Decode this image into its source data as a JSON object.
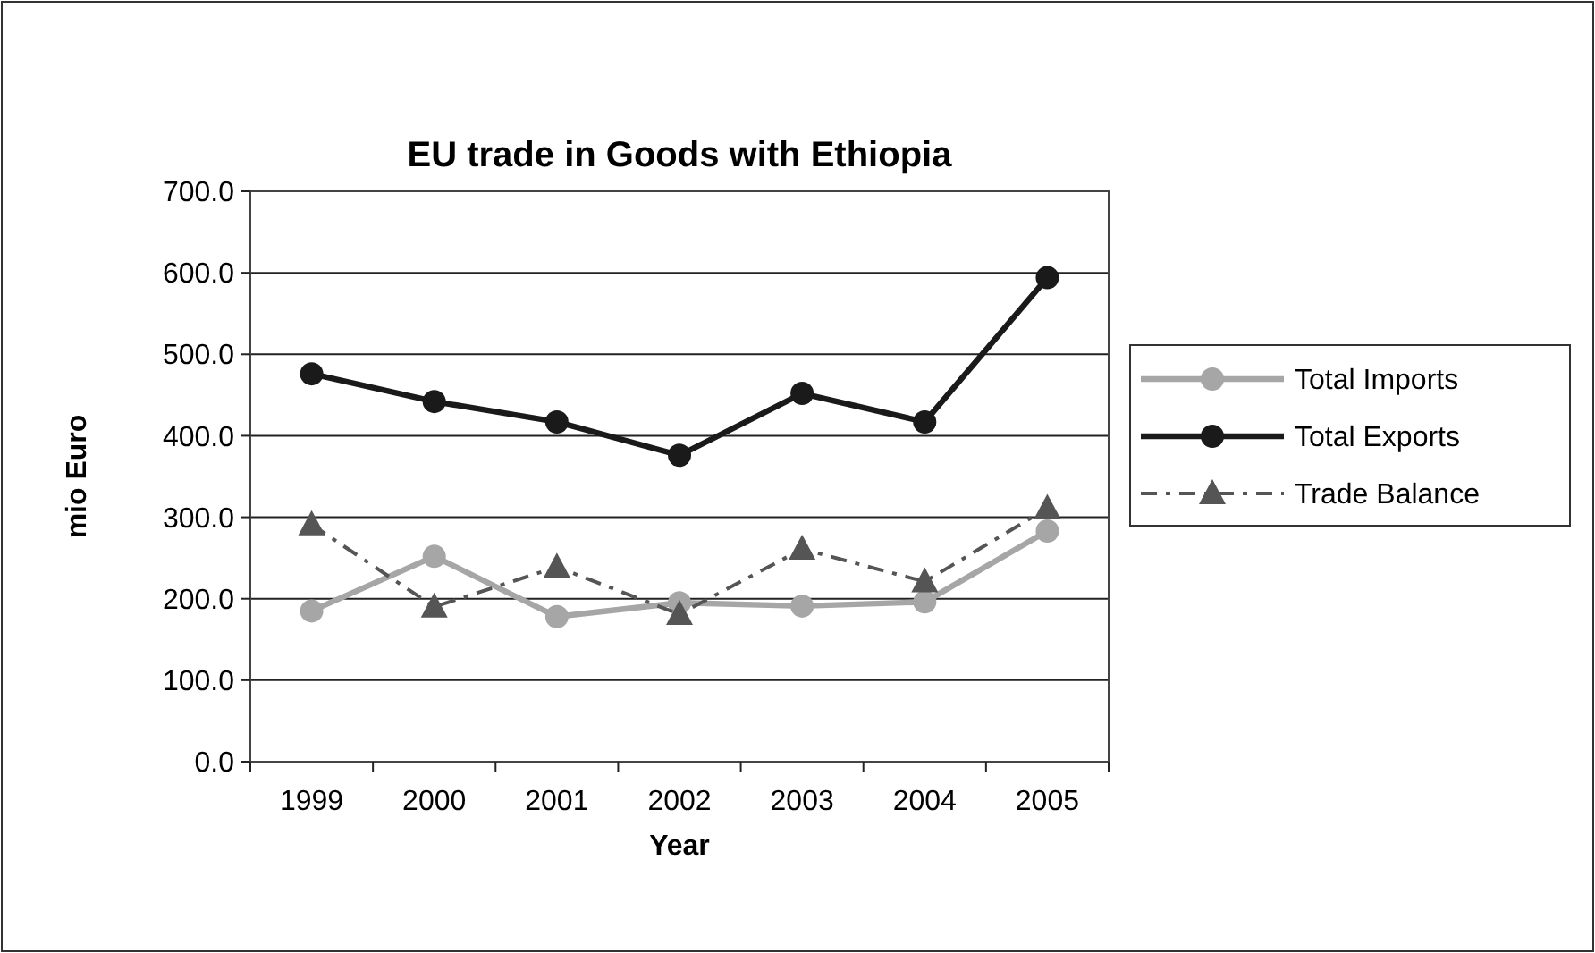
{
  "chart_data": {
    "type": "line",
    "title": "EU trade in Goods with Ethiopia",
    "xlabel": "Year",
    "ylabel": "mio Euro",
    "categories": [
      "1999",
      "2000",
      "2001",
      "2002",
      "2003",
      "2004",
      "2005"
    ],
    "series": [
      {
        "name": "Total Imports",
        "color": "#a6a6a6",
        "marker": "circle",
        "line_style": "solid",
        "values": [
          185,
          252,
          178,
          195,
          191,
          196,
          283
        ]
      },
      {
        "name": "Total Exports",
        "color": "#1a1a1a",
        "marker": "circle",
        "line_style": "solid",
        "values": [
          476,
          442,
          417,
          376,
          452,
          417,
          594
        ]
      },
      {
        "name": "Trade Balance",
        "color": "#555555",
        "marker": "triangle",
        "line_style": "dashed",
        "values": [
          291,
          190,
          239,
          181,
          261,
          221,
          311
        ]
      }
    ],
    "ylim": [
      0,
      700
    ],
    "yticks": [
      {
        "value": 0,
        "label": "0.0"
      },
      {
        "value": 100,
        "label": "100.0"
      },
      {
        "value": 200,
        "label": "200.0"
      },
      {
        "value": 300,
        "label": "300.0"
      },
      {
        "value": 400,
        "label": "400.0"
      },
      {
        "value": 500,
        "label": "500.0"
      },
      {
        "value": 600,
        "label": "600.0"
      },
      {
        "value": 700,
        "label": "700.0"
      }
    ],
    "grid": "y",
    "legend": "right"
  }
}
